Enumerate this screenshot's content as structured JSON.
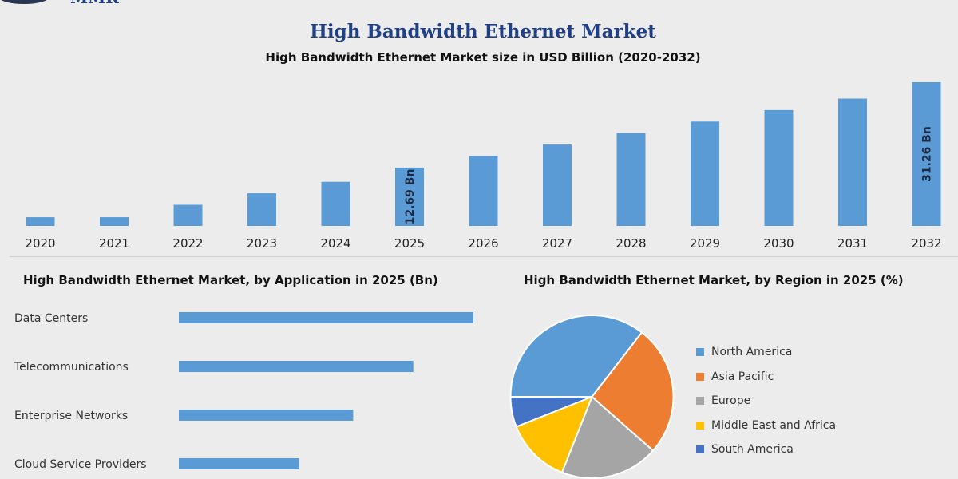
{
  "header": {
    "logo_text": "MMR",
    "title": "High Bandwidth Ethernet Market",
    "subtitle": "High Bandwidth Ethernet Market size in USD Billion (2020-2032)"
  },
  "colors": {
    "bar": "#5b9bd5",
    "title": "#1f3f86"
  },
  "chart_data": [
    {
      "type": "bar",
      "title": "High Bandwidth Ethernet Market size in USD Billion (2020-2032)",
      "categories": [
        "2020",
        "2021",
        "2022",
        "2023",
        "2024",
        "2025",
        "2026",
        "2027",
        "2028",
        "2029",
        "2030",
        "2031",
        "2032"
      ],
      "values": [
        1.9,
        1.9,
        4.6,
        7.1,
        9.6,
        12.69,
        15.2,
        17.7,
        20.2,
        22.7,
        25.2,
        27.7,
        31.26
      ],
      "data_labels": [
        {
          "category": "2025",
          "text": "12.69 Bn"
        },
        {
          "category": "2032",
          "text": "31.26 Bn"
        }
      ],
      "ylim": [
        0,
        31.26
      ]
    },
    {
      "type": "bar",
      "orientation": "horizontal",
      "title": "High Bandwidth Ethernet Market, by Application in 2025 (Bn)",
      "categories": [
        "Data Centers",
        "Telecommunications",
        "Enterprise Networks",
        "Cloud Service Providers"
      ],
      "values": [
        4.9,
        3.9,
        2.9,
        2.0
      ],
      "xlim": [
        0,
        4.9
      ]
    },
    {
      "type": "pie",
      "title": "High Bandwidth Ethernet Market, by Region in 2025 (%)",
      "labels": [
        "North America",
        "Asia Pacific",
        "Europe",
        "Middle East and Africa",
        "South America"
      ],
      "values": [
        35.5,
        26,
        19.5,
        13,
        6
      ],
      "colors": [
        "#5b9bd5",
        "#ed7d31",
        "#a5a5a5",
        "#ffc000",
        "#4472c4"
      ],
      "legend": "right"
    }
  ]
}
